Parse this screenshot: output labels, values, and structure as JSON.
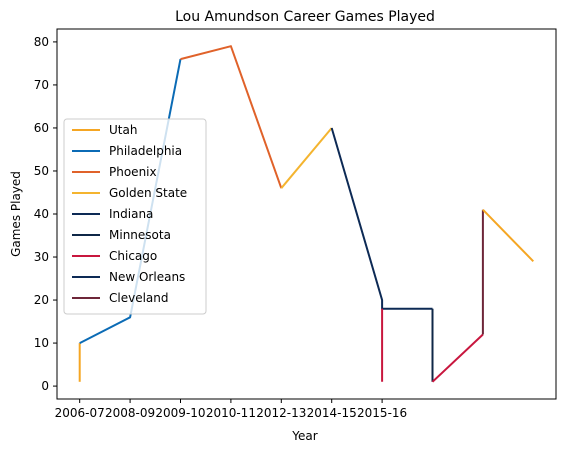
{
  "chart_data": {
    "type": "line",
    "title": "Lou Amundson Career Games Played",
    "xlabel": "Year",
    "ylabel": "Games Played",
    "ylim": [
      -3,
      83
    ],
    "xlim": [
      -0.45,
      9.45
    ],
    "x_ticks": [
      {
        "pos": 0,
        "label": "2006-07"
      },
      {
        "pos": 1,
        "label": "2008-09"
      },
      {
        "pos": 2,
        "label": "2009-10"
      },
      {
        "pos": 3,
        "label": "2010-11"
      },
      {
        "pos": 4,
        "label": "2012-13"
      },
      {
        "pos": 5,
        "label": "2014-15"
      },
      {
        "pos": 6,
        "label": "2015-16"
      }
    ],
    "y_ticks": [
      0,
      10,
      20,
      30,
      40,
      50,
      60,
      70,
      80
    ],
    "legend_position": "center-left",
    "series": [
      {
        "name": "Utah",
        "color": "#F5A623",
        "points": [
          [
            0,
            1
          ],
          [
            0,
            10
          ]
        ]
      },
      {
        "name": "Philadelphia",
        "color": "#0B6BB5",
        "points": [
          [
            0,
            10
          ],
          [
            1,
            16
          ],
          [
            2,
            76
          ]
        ]
      },
      {
        "name": "Phoenix",
        "color": "#E0622A",
        "points": [
          [
            2,
            76
          ],
          [
            3,
            79
          ],
          [
            4,
            46
          ]
        ]
      },
      {
        "name": "Golden State",
        "color": "#F4B42F",
        "points": [
          [
            4,
            46
          ],
          [
            5,
            60
          ]
        ]
      },
      {
        "name": "Indiana",
        "color": "#0D2A55",
        "points": [
          [
            5,
            60
          ],
          [
            6,
            20
          ],
          [
            6,
            18
          ],
          [
            7,
            18
          ]
        ]
      },
      {
        "name": "Minnesota",
        "color": "#0F2747",
        "points": [
          [
            7,
            18
          ],
          [
            7,
            1
          ]
        ]
      },
      {
        "name": "Chicago",
        "color": "#C8163E",
        "points": [
          [
            6,
            18
          ],
          [
            6,
            1
          ]
        ]
      },
      {
        "name": "Chicago",
        "color": "#C8163E",
        "points": [
          [
            7,
            1
          ],
          [
            8,
            12
          ]
        ]
      },
      {
        "name": "Cleveland",
        "color": "#6E2639",
        "points": [
          [
            8,
            12
          ],
          [
            8,
            41
          ]
        ]
      },
      {
        "name": "Utah",
        "color": "#F5A623",
        "points": [
          [
            8,
            41
          ],
          [
            9,
            29
          ]
        ]
      }
    ],
    "legend": [
      {
        "label": "Utah",
        "color": "#F5A623"
      },
      {
        "label": "Philadelphia",
        "color": "#0B6BB5"
      },
      {
        "label": "Phoenix",
        "color": "#E0622A"
      },
      {
        "label": "Golden State",
        "color": "#F4B42F"
      },
      {
        "label": "Indiana",
        "color": "#0D2A55"
      },
      {
        "label": "Minnesota",
        "color": "#0F2747"
      },
      {
        "label": "Chicago",
        "color": "#C8163E"
      },
      {
        "label": "New Orleans",
        "color": "#0D2A55"
      },
      {
        "label": "Cleveland",
        "color": "#6E2639"
      }
    ]
  }
}
